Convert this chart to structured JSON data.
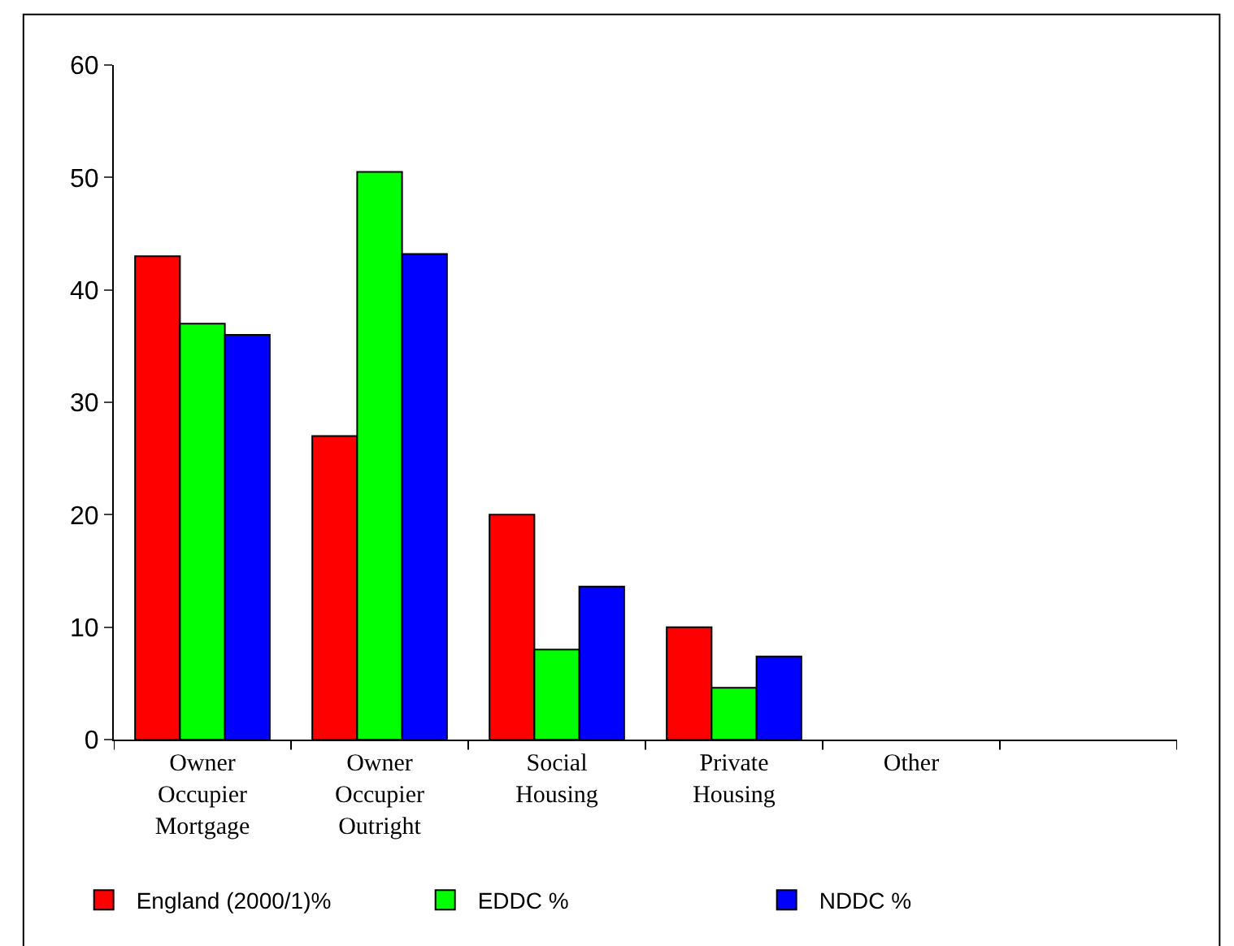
{
  "chart_data": {
    "type": "bar",
    "categories": [
      "Owner Occupier Mortgage",
      "Owner Occupier Outright",
      "Social Housing",
      "Private Housing",
      "Other",
      null
    ],
    "series": [
      {
        "name": "England (2000/1)%",
        "color": "#ff0000",
        "values": [
          43,
          27,
          20,
          10,
          null,
          null
        ]
      },
      {
        "name": "EDDC %",
        "color": "#00ff00",
        "values": [
          37,
          50.5,
          8,
          4.6,
          null,
          null
        ]
      },
      {
        "name": "NDDC %",
        "color": "#0000ff",
        "values": [
          36,
          43.2,
          13.6,
          7.4,
          null,
          null
        ]
      }
    ],
    "ylim": [
      0,
      60
    ],
    "yticks": [
      0,
      10,
      20,
      30,
      40,
      50,
      60
    ],
    "legend": "bottom"
  }
}
